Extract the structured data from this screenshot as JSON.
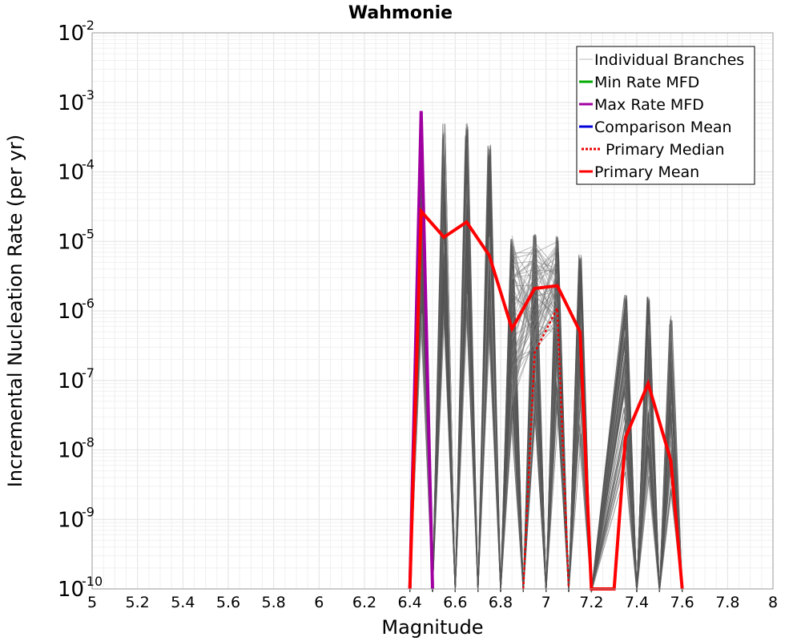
{
  "chart_data": {
    "type": "line",
    "title": "Wahmonie",
    "xlabel": "Magnitude",
    "ylabel": "Incremental Nucleation Rate (per yr)",
    "xlim": [
      5,
      8
    ],
    "ylim": [
      1e-10,
      0.01
    ],
    "y_scale": "log",
    "grid": true,
    "x_ticks": [
      "5",
      "5.2",
      "5.4",
      "5.6",
      "5.8",
      "6",
      "6.2",
      "6.4",
      "6.6",
      "6.8",
      "7",
      "7.2",
      "7.4",
      "7.6",
      "7.8",
      "8"
    ],
    "y_ticks": [
      {
        "base": "10",
        "exp": "-10",
        "value": 1e-10
      },
      {
        "base": "10",
        "exp": "-9",
        "value": 1e-09
      },
      {
        "base": "10",
        "exp": "-8",
        "value": 1e-08
      },
      {
        "base": "10",
        "exp": "-7",
        "value": 1e-07
      },
      {
        "base": "10",
        "exp": "-6",
        "value": 1e-06
      },
      {
        "base": "10",
        "exp": "-5",
        "value": 1e-05
      },
      {
        "base": "10",
        "exp": "-4",
        "value": 0.0001
      },
      {
        "base": "10",
        "exp": "-3",
        "value": 0.001
      },
      {
        "base": "10",
        "exp": "-2",
        "value": 0.01
      }
    ],
    "legend_position": "top-right",
    "series": [
      {
        "name": "Individual Branches",
        "color": "#555555",
        "style": "solid",
        "peaks": [
          {
            "x": 6.45,
            "max": 0.0002,
            "min": 1e-10
          },
          {
            "x": 6.55,
            "max": 0.0005,
            "min": 1e-10
          },
          {
            "x": 6.65,
            "max": 0.0005,
            "min": 1e-10
          },
          {
            "x": 6.75,
            "max": 0.00025,
            "min": 1e-10
          },
          {
            "x": 6.85,
            "max": 1.1e-05,
            "min": 1e-10
          },
          {
            "x": 6.95,
            "max": 1.3e-05,
            "min": 1e-10
          },
          {
            "x": 7.05,
            "max": 1.2e-05,
            "min": 1e-10
          },
          {
            "x": 7.15,
            "max": 6.5e-06,
            "min": 1e-10
          },
          {
            "x": 7.35,
            "max": 1.7e-06,
            "min": 1e-10
          },
          {
            "x": 7.45,
            "max": 1.6e-06,
            "min": 1e-10
          },
          {
            "x": 7.55,
            "max": 8.5e-07,
            "min": 1e-10
          }
        ]
      },
      {
        "name": "Min Rate MFD",
        "color": "#00aa00",
        "style": "solid",
        "x": [],
        "y": []
      },
      {
        "name": "Max Rate MFD",
        "color": "#a000a0",
        "style": "solid",
        "x": [
          6.4,
          6.45,
          6.5
        ],
        "y": [
          1e-10,
          0.00075,
          1e-10
        ]
      },
      {
        "name": "Comparison Mean",
        "color": "#0000dd",
        "style": "solid",
        "x": [],
        "y": []
      },
      {
        "name": "Primary Median",
        "color": "#ee0000",
        "style": "dotted",
        "x": [
          6.9,
          6.95,
          7.05,
          7.1
        ],
        "y": [
          1e-10,
          2.5e-07,
          1.1e-06,
          1e-10
        ]
      },
      {
        "name": "Primary Mean",
        "color": "#ff0000",
        "style": "solid",
        "x": [
          6.4,
          6.45,
          6.55,
          6.65,
          6.75,
          6.85,
          6.95,
          7.05,
          7.15,
          7.2,
          7.3,
          7.35,
          7.45,
          7.55,
          7.6
        ],
        "y": [
          1e-10,
          2.7e-05,
          1.15e-05,
          1.9e-05,
          6.3e-06,
          5.5e-07,
          2.1e-06,
          2.3e-06,
          5e-07,
          1e-10,
          1e-10,
          1.5e-08,
          9e-08,
          7e-09,
          1e-10
        ]
      }
    ]
  }
}
